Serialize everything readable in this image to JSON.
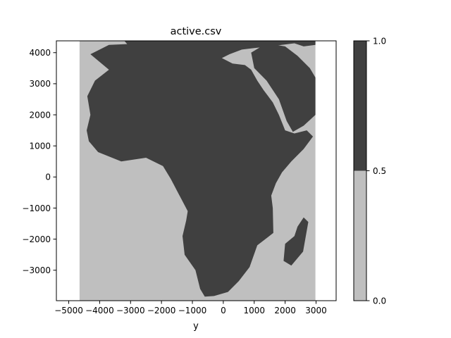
{
  "chart_data": {
    "type": "heatmap",
    "title": "active.csv",
    "xlabel": "y",
    "ylabel": "",
    "xlim": [
      -5400,
      3650
    ],
    "ylim": [
      -3980,
      4380
    ],
    "xticks": [
      -5000,
      -4000,
      -3000,
      -2000,
      -1000,
      0,
      1000,
      2000,
      3000
    ],
    "xtick_labels": [
      "−5000",
      "−4000",
      "−3000",
      "−2000",
      "−1000",
      "0",
      "1000",
      "2000",
      "3000"
    ],
    "yticks": [
      -3000,
      -2000,
      -1000,
      0,
      1000,
      2000,
      3000,
      4000
    ],
    "ytick_labels": [
      "−3000",
      "−2000",
      "−1000",
      "0",
      "1000",
      "2000",
      "3000",
      "4000"
    ],
    "data_extent": {
      "x": [
        -4650,
        2980
      ],
      "y": [
        -3980,
        4380
      ]
    },
    "levels": [
      0.0,
      0.5,
      1.0
    ],
    "level_labels": [
      "0.0",
      "0.5",
      "1.0"
    ],
    "level_colors": [
      "#bfbfbf",
      "#404040"
    ],
    "grid": false,
    "legend": "colorbar-right",
    "land_outline": [
      [
        -4300,
        3950
      ],
      [
        -3700,
        4250
      ],
      [
        -3000,
        4280
      ],
      [
        -2200,
        4230
      ],
      [
        -1700,
        4250
      ],
      [
        -1200,
        4100
      ],
      [
        -600,
        4000
      ],
      [
        -150,
        3880
      ],
      [
        300,
        3650
      ],
      [
        700,
        3600
      ],
      [
        900,
        3450
      ],
      [
        1100,
        3100
      ],
      [
        1300,
        2800
      ],
      [
        1600,
        2400
      ],
      [
        1800,
        2000
      ],
      [
        2000,
        1500
      ],
      [
        2300,
        1400
      ],
      [
        2700,
        1500
      ],
      [
        2900,
        1300
      ],
      [
        2600,
        900
      ],
      [
        2200,
        500
      ],
      [
        1900,
        150
      ],
      [
        1700,
        -200
      ],
      [
        1550,
        -600
      ],
      [
        1600,
        -1000
      ],
      [
        1620,
        -1800
      ],
      [
        1100,
        -2200
      ],
      [
        850,
        -2900
      ],
      [
        500,
        -3350
      ],
      [
        150,
        -3700
      ],
      [
        -300,
        -3830
      ],
      [
        -600,
        -3850
      ],
      [
        -750,
        -3600
      ],
      [
        -900,
        -3000
      ],
      [
        -1250,
        -2500
      ],
      [
        -1320,
        -1900
      ],
      [
        -1200,
        -1400
      ],
      [
        -1150,
        -1100
      ],
      [
        -1600,
        -250
      ],
      [
        -1700,
        -60
      ],
      [
        -1950,
        350
      ],
      [
        -2500,
        620
      ],
      [
        -3300,
        500
      ],
      [
        -4050,
        800
      ],
      [
        -4350,
        1150
      ],
      [
        -4420,
        1500
      ],
      [
        -4300,
        2000
      ],
      [
        -4400,
        2600
      ],
      [
        -4150,
        3100
      ],
      [
        -3700,
        3450
      ]
    ],
    "island": [
      [
        2400,
        -1600
      ],
      [
        2600,
        -1300
      ],
      [
        2750,
        -1450
      ],
      [
        2580,
        -2400
      ],
      [
        2200,
        -2850
      ],
      [
        1950,
        -2700
      ],
      [
        2000,
        -2150
      ],
      [
        2300,
        -1900
      ]
    ],
    "arabia": [
      [
        1000,
        3500
      ],
      [
        1400,
        3100
      ],
      [
        1800,
        2500
      ],
      [
        2050,
        1800
      ],
      [
        2250,
        1450
      ],
      [
        2600,
        1650
      ],
      [
        2980,
        2000
      ],
      [
        2980,
        3200
      ],
      [
        2800,
        3500
      ],
      [
        2400,
        3900
      ],
      [
        2000,
        4200
      ],
      [
        1400,
        4300
      ],
      [
        900,
        4000
      ]
    ],
    "europe": [
      [
        -3200,
        4380
      ],
      [
        -3000,
        4150
      ],
      [
        -2700,
        4060
      ],
      [
        -2300,
        4150
      ],
      [
        -2000,
        4050
      ],
      [
        -1600,
        4200
      ],
      [
        -1300,
        4050
      ],
      [
        -1000,
        3950
      ],
      [
        -600,
        3750
      ],
      [
        -300,
        3900
      ],
      [
        -100,
        3800
      ],
      [
        200,
        3950
      ],
      [
        600,
        4100
      ],
      [
        1000,
        4150
      ],
      [
        1500,
        4200
      ],
      [
        2300,
        4300
      ],
      [
        2600,
        4200
      ],
      [
        2980,
        4250
      ],
      [
        2980,
        4380
      ]
    ]
  }
}
